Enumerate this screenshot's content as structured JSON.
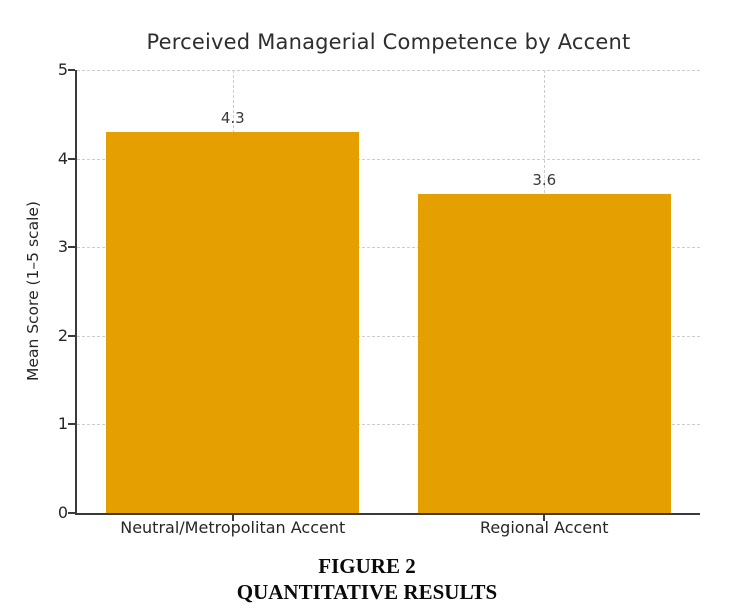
{
  "chart_data": {
    "type": "bar",
    "title": "Perceived Managerial Competence by Accent",
    "categories": [
      "Neutral/Metropolitan Accent",
      "Regional Accent"
    ],
    "values": [
      4.3,
      3.6
    ],
    "value_labels": [
      "4.3",
      "3.6"
    ],
    "xlabel": "",
    "ylabel": "Mean Score (1–5 scale)",
    "ylim": [
      0,
      5
    ],
    "yticks": [
      0,
      1,
      2,
      3,
      4,
      5
    ],
    "bar_color": "#E69F00",
    "grid": "dashed gridlines on both axes",
    "legend_position": "none"
  },
  "caption": {
    "line1": "FIGURE 2",
    "line2": "QUANTITATIVE RESULTS"
  }
}
